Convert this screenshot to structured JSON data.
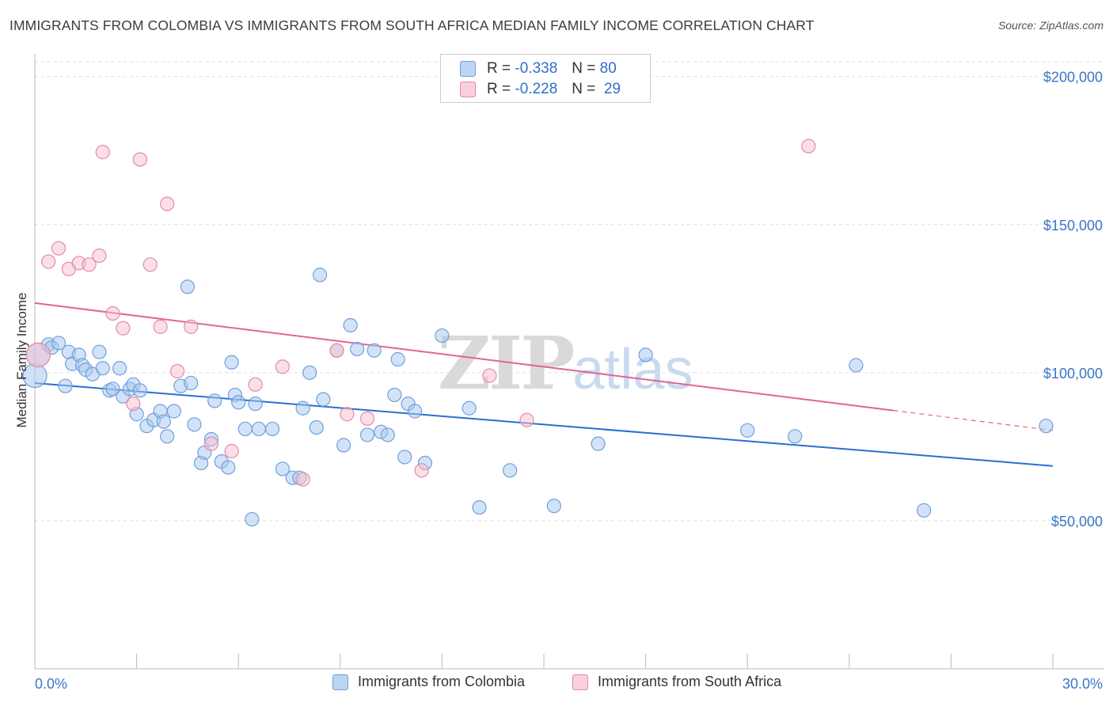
{
  "title": "IMMIGRANTS FROM COLOMBIA VS IMMIGRANTS FROM SOUTH AFRICA MEDIAN FAMILY INCOME CORRELATION CHART",
  "source": "Source: ZipAtlas.com",
  "watermark": {
    "zip": "ZIP",
    "atlas": "atlas"
  },
  "legend": {
    "colombia": {
      "r_label": "R =",
      "r_value": "-0.338",
      "n_label": "N =",
      "n_value": "80"
    },
    "south_africa": {
      "r_label": "R =",
      "r_value": "-0.228",
      "n_label": "N =",
      "n_value": "29"
    }
  },
  "colors": {
    "colombia_fill": "#a8c8f0",
    "colombia_stroke": "#6f9fdc",
    "colombia_line": "#2a6fcf",
    "south_africa_fill": "#f7bfd0",
    "south_africa_stroke": "#e48aa8",
    "south_africa_line": "#e0668f",
    "axis_text": "#3a76c9",
    "grid": "#dddddd"
  },
  "chart_data": {
    "type": "scatter",
    "title": "IMMIGRANTS FROM COLOMBIA VS IMMIGRANTS FROM SOUTH AFRICA MEDIAN FAMILY INCOME CORRELATION CHART",
    "xlabel": "",
    "ylabel": "Median Family Income",
    "x_tick_labels": [
      "0.0%",
      "30.0%"
    ],
    "y_tick_labels": [
      "$50,000",
      "$100,000",
      "$150,000",
      "$200,000"
    ],
    "xlim": [
      0,
      30
    ],
    "ylim": [
      0,
      205000
    ],
    "grid": true,
    "legend_position": "bottom",
    "series": [
      {
        "name": "Immigrants from Colombia",
        "r": -0.338,
        "n": 80,
        "trend": {
          "x": [
            0,
            30
          ],
          "y": [
            96500,
            68500
          ],
          "dashed_from": null
        },
        "points": [
          {
            "x": 0.0,
            "y": 99000,
            "big": true
          },
          {
            "x": 0.1,
            "y": 106000,
            "big": true
          },
          {
            "x": 0.4,
            "y": 109500
          },
          {
            "x": 0.5,
            "y": 108500
          },
          {
            "x": 0.7,
            "y": 110000
          },
          {
            "x": 0.9,
            "y": 95500
          },
          {
            "x": 1.0,
            "y": 107000
          },
          {
            "x": 1.1,
            "y": 103000
          },
          {
            "x": 1.3,
            "y": 106000
          },
          {
            "x": 1.4,
            "y": 102500
          },
          {
            "x": 1.5,
            "y": 101000
          },
          {
            "x": 1.7,
            "y": 99500
          },
          {
            "x": 1.9,
            "y": 107000
          },
          {
            "x": 2.0,
            "y": 101500
          },
          {
            "x": 2.2,
            "y": 94000
          },
          {
            "x": 2.3,
            "y": 94500
          },
          {
            "x": 2.5,
            "y": 101500
          },
          {
            "x": 2.6,
            "y": 92000
          },
          {
            "x": 2.8,
            "y": 94500
          },
          {
            "x": 2.9,
            "y": 96000
          },
          {
            "x": 3.0,
            "y": 86000
          },
          {
            "x": 3.1,
            "y": 94000
          },
          {
            "x": 3.3,
            "y": 82000
          },
          {
            "x": 3.5,
            "y": 84000
          },
          {
            "x": 3.7,
            "y": 87000
          },
          {
            "x": 3.8,
            "y": 83500
          },
          {
            "x": 3.9,
            "y": 78500
          },
          {
            "x": 4.1,
            "y": 87000
          },
          {
            "x": 4.3,
            "y": 95500
          },
          {
            "x": 4.5,
            "y": 129000
          },
          {
            "x": 4.6,
            "y": 96500
          },
          {
            "x": 4.7,
            "y": 82500
          },
          {
            "x": 4.9,
            "y": 69500
          },
          {
            "x": 5.0,
            "y": 73000
          },
          {
            "x": 5.2,
            "y": 77500
          },
          {
            "x": 5.3,
            "y": 90500
          },
          {
            "x": 5.5,
            "y": 70000
          },
          {
            "x": 5.7,
            "y": 68000
          },
          {
            "x": 5.8,
            "y": 103500
          },
          {
            "x": 5.9,
            "y": 92500
          },
          {
            "x": 6.0,
            "y": 90000
          },
          {
            "x": 6.2,
            "y": 81000
          },
          {
            "x": 6.4,
            "y": 50500
          },
          {
            "x": 6.5,
            "y": 89500
          },
          {
            "x": 6.6,
            "y": 81000
          },
          {
            "x": 7.0,
            "y": 81000
          },
          {
            "x": 7.3,
            "y": 67500
          },
          {
            "x": 7.6,
            "y": 64500
          },
          {
            "x": 7.8,
            "y": 64500
          },
          {
            "x": 7.9,
            "y": 88000
          },
          {
            "x": 8.1,
            "y": 100000
          },
          {
            "x": 8.3,
            "y": 81500
          },
          {
            "x": 8.4,
            "y": 133000
          },
          {
            "x": 8.5,
            "y": 91000
          },
          {
            "x": 8.9,
            "y": 107500
          },
          {
            "x": 9.1,
            "y": 75500
          },
          {
            "x": 9.3,
            "y": 116000
          },
          {
            "x": 9.5,
            "y": 108000
          },
          {
            "x": 9.8,
            "y": 79000
          },
          {
            "x": 10.0,
            "y": 107500
          },
          {
            "x": 10.2,
            "y": 80000
          },
          {
            "x": 10.4,
            "y": 79000
          },
          {
            "x": 10.6,
            "y": 92500
          },
          {
            "x": 10.7,
            "y": 104500
          },
          {
            "x": 10.9,
            "y": 71500
          },
          {
            "x": 11.0,
            "y": 89500
          },
          {
            "x": 11.2,
            "y": 87000
          },
          {
            "x": 11.5,
            "y": 69500
          },
          {
            "x": 12.0,
            "y": 112500
          },
          {
            "x": 12.8,
            "y": 88000
          },
          {
            "x": 13.1,
            "y": 54500
          },
          {
            "x": 14.0,
            "y": 67000
          },
          {
            "x": 15.3,
            "y": 55000
          },
          {
            "x": 16.6,
            "y": 76000
          },
          {
            "x": 18.0,
            "y": 106000
          },
          {
            "x": 21.0,
            "y": 80500
          },
          {
            "x": 22.4,
            "y": 78500
          },
          {
            "x": 24.2,
            "y": 102500
          },
          {
            "x": 26.2,
            "y": 53500
          },
          {
            "x": 29.8,
            "y": 82000
          }
        ]
      },
      {
        "name": "Immigrants from South Africa",
        "r": -0.228,
        "n": 29,
        "trend": {
          "x": [
            0,
            30
          ],
          "y": [
            123500,
            80500
          ],
          "dashed_from": 25.3
        },
        "points": [
          {
            "x": 0.1,
            "y": 106000,
            "big": true
          },
          {
            "x": 0.4,
            "y": 137500
          },
          {
            "x": 0.7,
            "y": 142000
          },
          {
            "x": 1.0,
            "y": 135000
          },
          {
            "x": 1.3,
            "y": 137000
          },
          {
            "x": 1.6,
            "y": 136500
          },
          {
            "x": 1.9,
            "y": 139500
          },
          {
            "x": 2.0,
            "y": 174500
          },
          {
            "x": 2.3,
            "y": 120000
          },
          {
            "x": 2.6,
            "y": 115000
          },
          {
            "x": 2.9,
            "y": 89500
          },
          {
            "x": 3.1,
            "y": 172000
          },
          {
            "x": 3.4,
            "y": 136500
          },
          {
            "x": 3.7,
            "y": 115500
          },
          {
            "x": 3.9,
            "y": 157000
          },
          {
            "x": 4.2,
            "y": 100500
          },
          {
            "x": 4.6,
            "y": 115500
          },
          {
            "x": 5.2,
            "y": 76000
          },
          {
            "x": 5.8,
            "y": 73500
          },
          {
            "x": 6.5,
            "y": 96000
          },
          {
            "x": 7.3,
            "y": 102000
          },
          {
            "x": 7.9,
            "y": 64000
          },
          {
            "x": 8.9,
            "y": 107500
          },
          {
            "x": 9.2,
            "y": 86000
          },
          {
            "x": 9.8,
            "y": 84500
          },
          {
            "x": 11.4,
            "y": 67000
          },
          {
            "x": 13.4,
            "y": 99000
          },
          {
            "x": 14.5,
            "y": 84000
          },
          {
            "x": 22.8,
            "y": 176500
          }
        ]
      }
    ]
  }
}
